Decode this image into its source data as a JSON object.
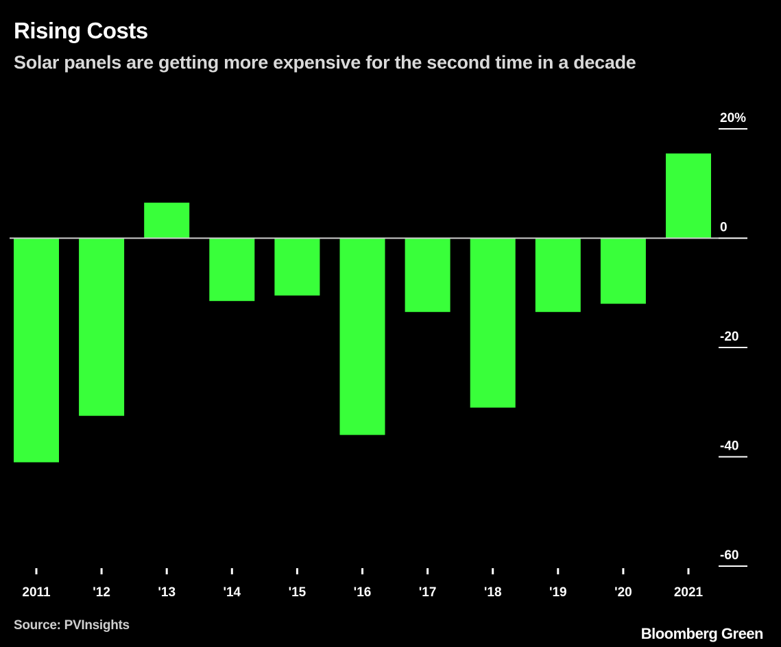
{
  "header": {
    "title": "Rising Costs",
    "subtitle": "Solar panels are getting more expensive for the second time in a decade"
  },
  "footer": {
    "source": "Source: PVInsights",
    "brand": "Bloomberg Green"
  },
  "colors": {
    "background": "#000000",
    "bar": "#39ff3a",
    "text": "#ffffff",
    "subtext": "#d9d9d9",
    "zero_line": "#cfcfcf"
  },
  "chart_data": {
    "type": "bar",
    "title": "Rising Costs",
    "subtitle": "Solar panels are getting more expensive for the second time in a decade",
    "categories": [
      "2011",
      "'12",
      "'13",
      "'14",
      "'15",
      "'16",
      "'17",
      "'18",
      "'19",
      "'20",
      "2021"
    ],
    "values": [
      -41,
      -32.5,
      6.5,
      -11.5,
      -10.5,
      -36,
      -13.5,
      -31,
      -13.5,
      -12,
      15.5
    ],
    "ylim": [
      -60,
      20
    ],
    "yticks": [
      20,
      0,
      -20,
      -40,
      -60
    ],
    "ytick_labels": [
      "20%",
      "0",
      "-20",
      "-40",
      "-60"
    ],
    "y_axis_side": "right",
    "grid": false,
    "xlabel": "",
    "ylabel": ""
  }
}
